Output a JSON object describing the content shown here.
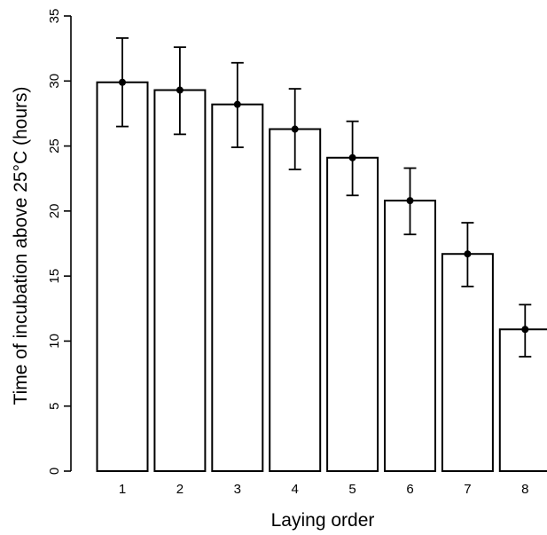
{
  "chart_data": {
    "type": "bar",
    "xlabel": "Laying order",
    "ylabel": "Time of incubation above 25°C (hours)",
    "categories": [
      "1",
      "2",
      "3",
      "4",
      "5",
      "6",
      "7",
      "8"
    ],
    "values": [
      29.9,
      29.3,
      28.2,
      26.3,
      24.1,
      20.8,
      16.7,
      10.9
    ],
    "error_upper": [
      33.3,
      32.6,
      31.4,
      29.4,
      26.9,
      23.3,
      19.1,
      12.8
    ],
    "error_lower": [
      26.5,
      25.9,
      24.9,
      23.2,
      21.2,
      18.2,
      14.2,
      8.8
    ],
    "ylim": [
      0,
      35
    ],
    "yticks": [
      "0",
      "5",
      "10",
      "15",
      "20",
      "25",
      "30",
      "35"
    ],
    "grid": false,
    "bar_fill": "#ffffff",
    "bar_stroke": "#000000"
  }
}
